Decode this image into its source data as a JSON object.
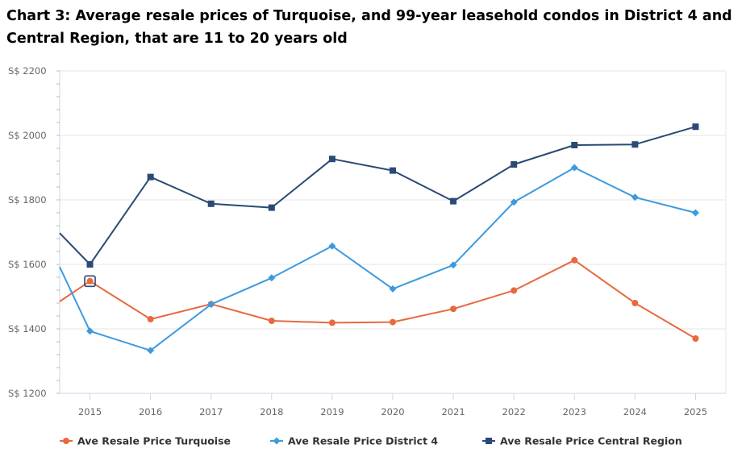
{
  "chart_data": {
    "type": "line",
    "title": "Chart 3: Average resale prices of Turquoise, and 99-year leasehold condos in District 4 and Central Region, that are 11 to 20 years old",
    "xlabel": "",
    "ylabel": "",
    "x_range": [
      2014.5,
      2025.5
    ],
    "ylim": [
      1200,
      2200
    ],
    "y_ticks": [
      1200,
      1400,
      1600,
      1800,
      2000,
      2200
    ],
    "y_tick_prefix": "S$ ",
    "x": [
      2015,
      2016,
      2017,
      2018,
      2019,
      2020,
      2021,
      2022,
      2023,
      2024,
      2025
    ],
    "legend_position": "bottom",
    "grid": true,
    "series": [
      {
        "name": "Ave Resale Price Turquoise",
        "color": "#e8693f",
        "marker": "circle",
        "left_edge_value": 1485,
        "values": [
          1548,
          1430,
          1477,
          1425,
          1419,
          1421,
          1462,
          1519,
          1613,
          1480,
          1370
        ]
      },
      {
        "name": "Ave Resale Price District 4",
        "color": "#3d9ade",
        "marker": "diamond",
        "left_edge_value": 1592,
        "values": [
          1393,
          1333,
          1476,
          1558,
          1657,
          1524,
          1598,
          1793,
          1900,
          1808,
          1760
        ]
      },
      {
        "name": "Ave Resale Price Central Region",
        "color": "#2a4a75",
        "marker": "square",
        "left_edge_value": 1697,
        "values": [
          1600,
          1871,
          1788,
          1776,
          1927,
          1891,
          1796,
          1910,
          1970,
          1972,
          2027
        ]
      }
    ],
    "highlighted_x": 2015
  }
}
